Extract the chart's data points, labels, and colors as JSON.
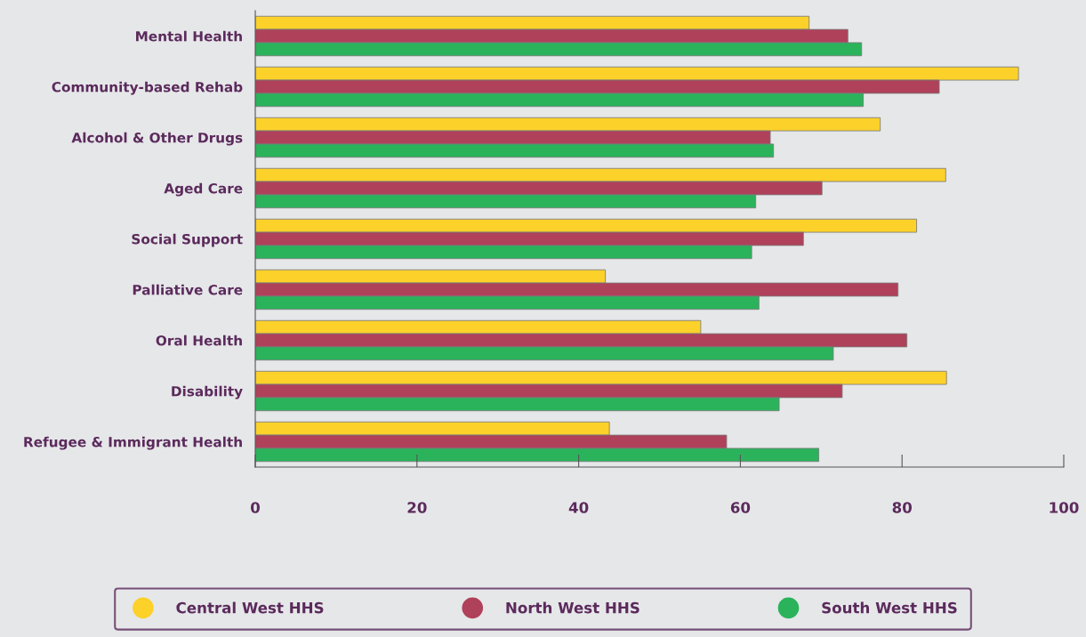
{
  "chart_data": {
    "type": "bar",
    "orientation": "horizontal",
    "categories": [
      "Mental Health",
      "Community-based Rehab",
      "Alcohol & Other Drugs",
      "Aged Care",
      "Social Support",
      "Palliative Care",
      "Oral Health",
      "Disability",
      "Refugee & Immigrant Health"
    ],
    "series": [
      {
        "name": "Central West HHS",
        "color": "#fcd12a",
        "values": [
          68.5,
          94.4,
          77.3,
          85.4,
          81.8,
          43.3,
          55.1,
          85.5,
          43.8
        ]
      },
      {
        "name": "North West HHS",
        "color": "#b0415a",
        "values": [
          73.3,
          84.6,
          63.7,
          70.1,
          67.8,
          79.5,
          80.6,
          72.6,
          58.3
        ]
      },
      {
        "name": "South West HHS",
        "color": "#2ab35b",
        "values": [
          75.0,
          75.2,
          64.1,
          61.9,
          61.4,
          62.3,
          71.5,
          64.8,
          69.7
        ]
      }
    ],
    "xlim": [
      0,
      100
    ],
    "xticks": [
      0,
      20,
      40,
      60,
      80,
      100
    ],
    "grid": false,
    "legend": "bottom"
  }
}
